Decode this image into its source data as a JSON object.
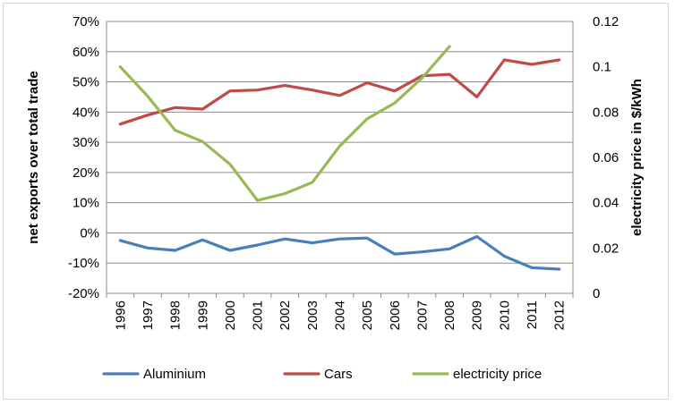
{
  "chart_data": {
    "type": "line",
    "x": [
      "1996",
      "1997",
      "1998",
      "1999",
      "2000",
      "2001",
      "2002",
      "2003",
      "2004",
      "2005",
      "2006",
      "2007",
      "2008",
      "2009",
      "2010",
      "2011",
      "2012"
    ],
    "ylabel_left": "net exports over total trade",
    "ylabel_right": "electricity price in $/kWh",
    "ylim_left": [
      -20,
      70
    ],
    "yticks_left": [
      "-20%",
      "-10%",
      "0%",
      "10%",
      "20%",
      "30%",
      "40%",
      "50%",
      "60%",
      "70%"
    ],
    "ylim_right": [
      0,
      0.12
    ],
    "yticks_right": [
      "0",
      "0.02",
      "0.04",
      "0.06",
      "0.08",
      "0.1",
      "0.12"
    ],
    "grid": "horizontal",
    "legend_position": "bottom",
    "series": [
      {
        "name": "Aluminium",
        "axis": "left",
        "color": "#4a7ebb",
        "values": [
          -2.5,
          -5,
          -5.8,
          -2.3,
          -5.8,
          -4,
          -2,
          -3.3,
          -2,
          -1.7,
          -7,
          -6.3,
          -5.3,
          -1.2,
          -7.7,
          -11.5,
          -12
        ]
      },
      {
        "name": "Cars",
        "axis": "left",
        "color": "#be4b48",
        "values": [
          36,
          39,
          41.5,
          41,
          47,
          47.3,
          48.8,
          47.3,
          45.5,
          49.7,
          47,
          52,
          52.5,
          45,
          57.3,
          55.8,
          57.3
        ]
      },
      {
        "name": "electricity price",
        "axis": "right",
        "color": "#98b954",
        "values": [
          0.1,
          0.087,
          0.072,
          0.067,
          0.057,
          0.041,
          0.044,
          0.049,
          0.065,
          0.077,
          0.084,
          0.095,
          0.109,
          null,
          null,
          null,
          null
        ]
      }
    ]
  }
}
